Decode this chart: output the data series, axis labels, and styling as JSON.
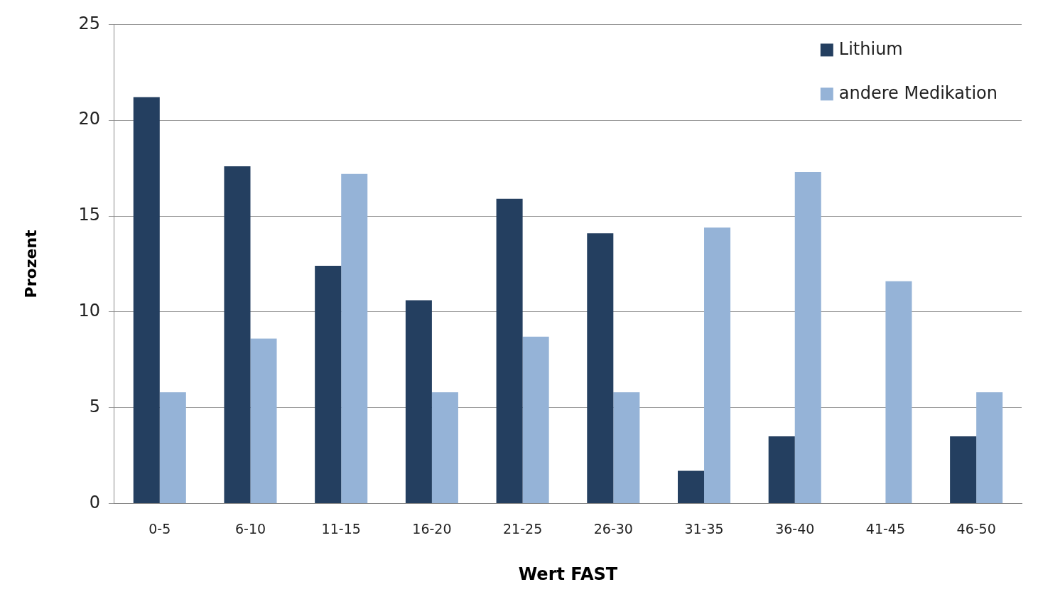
{
  "chart_data": {
    "type": "bar",
    "xlabel": "Wert FAST",
    "ylabel": "Prozent",
    "categories": [
      "0-5",
      "6-10",
      "11-15",
      "16-20",
      "21-25",
      "26-30",
      "31-35",
      "36-40",
      "41-45",
      "46-50"
    ],
    "series": [
      {
        "name": "Lithium",
        "color": "#243f60",
        "values": [
          21.2,
          17.6,
          12.4,
          10.6,
          15.9,
          14.1,
          1.7,
          3.5,
          0,
          3.5
        ]
      },
      {
        "name": "andere Medikation",
        "color": "#95b3d7",
        "values": [
          5.8,
          8.6,
          17.2,
          5.8,
          8.7,
          5.8,
          14.4,
          17.3,
          11.6,
          5.8
        ]
      }
    ],
    "ylim": [
      0,
      25
    ],
    "yticks": [
      0,
      5,
      10,
      15,
      20,
      25
    ],
    "grid": "y",
    "legend": "top right"
  }
}
